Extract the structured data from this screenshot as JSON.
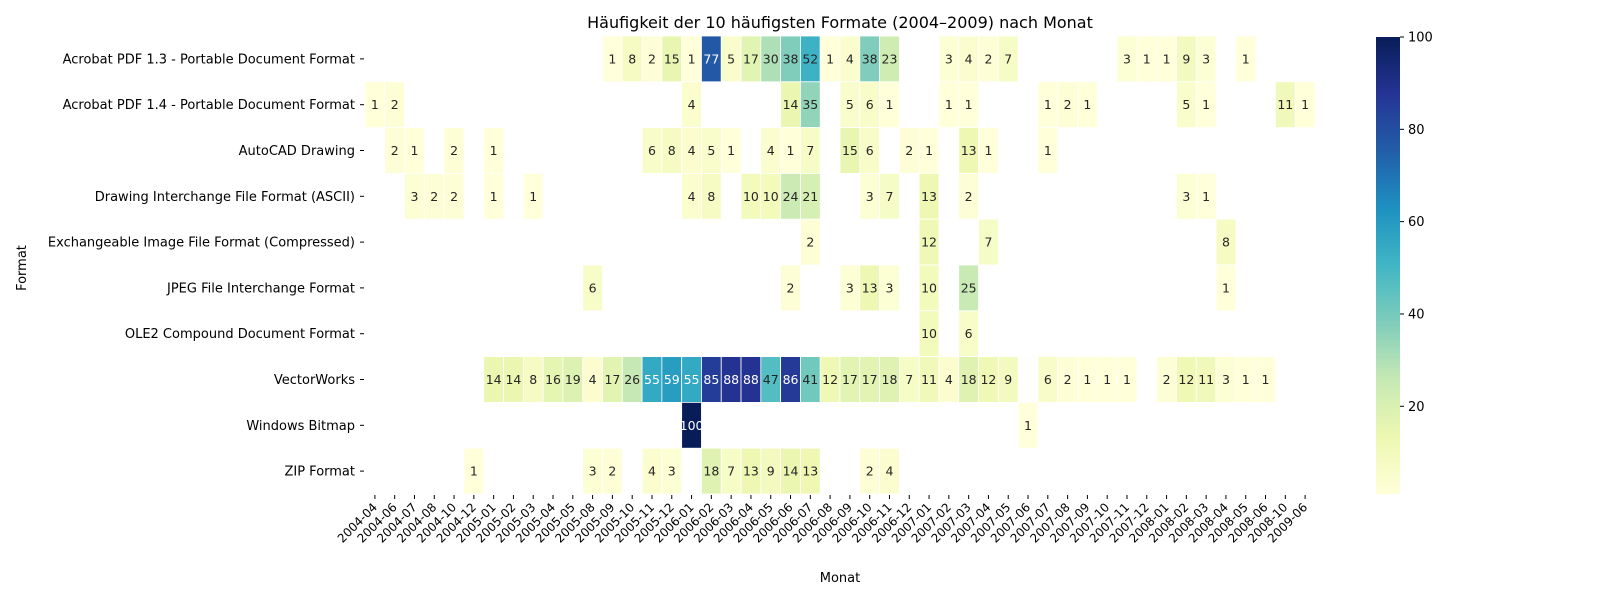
{
  "chart_data": {
    "type": "heatmap",
    "title": "Häufigkeit der 10 häufigsten Formate (2004–2009) nach Monat",
    "xlabel": "Monat",
    "ylabel": "Format",
    "x_categories": [
      "2004-04",
      "2004-06",
      "2004-07",
      "2004-08",
      "2004-10",
      "2004-12",
      "2005-01",
      "2005-02",
      "2005-03",
      "2005-04",
      "2005-05",
      "2005-08",
      "2005-09",
      "2005-10",
      "2005-11",
      "2005-12",
      "2006-01",
      "2006-02",
      "2006-03",
      "2006-04",
      "2006-05",
      "2006-06",
      "2006-07",
      "2006-08",
      "2006-09",
      "2006-10",
      "2006-11",
      "2006-12",
      "2007-01",
      "2007-02",
      "2007-03",
      "2007-04",
      "2007-05",
      "2007-06",
      "2007-07",
      "2007-08",
      "2007-09",
      "2007-10",
      "2007-11",
      "2007-12",
      "2008-01",
      "2008-02",
      "2008-03",
      "2008-04",
      "2008-05",
      "2008-06",
      "2008-10",
      "2009-06"
    ],
    "y_categories": [
      "Acrobat PDF 1.3 - Portable Document Format",
      "Acrobat PDF 1.4 - Portable Document Format",
      "AutoCAD Drawing",
      "Drawing Interchange File Format (ASCII)",
      "Exchangeable Image File Format (Compressed)",
      "JPEG File Interchange Format",
      "OLE2 Compound Document Format",
      "VectorWorks",
      "Windows Bitmap",
      "ZIP Format"
    ],
    "values": [
      [
        null,
        null,
        null,
        null,
        null,
        null,
        null,
        null,
        null,
        null,
        null,
        null,
        1,
        8,
        2,
        15,
        1,
        77,
        5,
        17,
        30,
        38,
        52,
        1,
        4,
        38,
        23,
        null,
        null,
        3,
        4,
        2,
        7,
        null,
        null,
        null,
        null,
        null,
        3,
        1,
        1,
        9,
        3,
        null,
        1,
        null,
        null,
        null
      ],
      [
        1,
        2,
        null,
        null,
        null,
        null,
        null,
        null,
        null,
        null,
        null,
        null,
        null,
        null,
        null,
        null,
        4,
        null,
        null,
        null,
        null,
        14,
        35,
        null,
        5,
        6,
        1,
        null,
        null,
        1,
        1,
        null,
        null,
        null,
        1,
        2,
        1,
        null,
        null,
        null,
        null,
        5,
        1,
        null,
        null,
        null,
        11,
        1
      ],
      [
        null,
        2,
        1,
        null,
        2,
        null,
        1,
        null,
        null,
        null,
        null,
        null,
        null,
        null,
        6,
        8,
        4,
        5,
        1,
        null,
        4,
        1,
        7,
        null,
        15,
        6,
        null,
        2,
        1,
        null,
        13,
        1,
        null,
        null,
        1,
        null,
        null,
        null,
        null,
        null,
        null,
        null,
        null,
        null,
        null,
        null,
        null,
        null
      ],
      [
        null,
        null,
        3,
        2,
        2,
        null,
        1,
        null,
        1,
        null,
        null,
        null,
        null,
        null,
        null,
        null,
        4,
        8,
        null,
        10,
        10,
        24,
        21,
        null,
        null,
        3,
        7,
        null,
        13,
        null,
        2,
        null,
        null,
        null,
        null,
        null,
        null,
        null,
        null,
        null,
        null,
        3,
        1,
        null,
        null,
        null,
        null,
        null
      ],
      [
        null,
        null,
        null,
        null,
        null,
        null,
        null,
        null,
        null,
        null,
        null,
        null,
        null,
        null,
        null,
        null,
        null,
        null,
        null,
        null,
        null,
        null,
        2,
        null,
        null,
        null,
        null,
        null,
        12,
        null,
        null,
        7,
        null,
        null,
        null,
        null,
        null,
        null,
        null,
        null,
        null,
        null,
        null,
        8,
        null,
        null,
        null,
        null
      ],
      [
        null,
        null,
        null,
        null,
        null,
        null,
        null,
        null,
        null,
        null,
        null,
        6,
        null,
        null,
        null,
        null,
        null,
        null,
        null,
        null,
        null,
        2,
        null,
        null,
        3,
        13,
        3,
        null,
        10,
        null,
        25,
        null,
        null,
        null,
        null,
        null,
        null,
        null,
        null,
        null,
        null,
        null,
        null,
        1,
        null,
        null,
        null,
        null
      ],
      [
        null,
        null,
        null,
        null,
        null,
        null,
        null,
        null,
        null,
        null,
        null,
        null,
        null,
        null,
        null,
        null,
        null,
        null,
        null,
        null,
        null,
        null,
        null,
        null,
        null,
        null,
        null,
        null,
        10,
        null,
        6,
        null,
        null,
        null,
        null,
        null,
        null,
        null,
        null,
        null,
        null,
        null,
        null,
        null,
        null,
        null,
        null,
        null
      ],
      [
        null,
        null,
        null,
        null,
        null,
        null,
        14,
        14,
        8,
        16,
        19,
        4,
        17,
        26,
        55,
        59,
        55,
        85,
        88,
        88,
        47,
        86,
        41,
        12,
        17,
        17,
        18,
        7,
        11,
        4,
        18,
        12,
        9,
        null,
        6,
        2,
        1,
        1,
        1,
        null,
        2,
        12,
        11,
        3,
        1,
        1,
        null,
        null
      ],
      [
        null,
        null,
        null,
        null,
        null,
        null,
        null,
        null,
        null,
        null,
        null,
        null,
        null,
        null,
        null,
        null,
        100,
        null,
        null,
        null,
        null,
        null,
        null,
        null,
        null,
        null,
        null,
        null,
        null,
        null,
        null,
        null,
        null,
        1,
        null,
        null,
        null,
        null,
        null,
        null,
        null,
        null,
        null,
        null,
        null,
        null,
        null,
        null
      ],
      [
        null,
        null,
        null,
        null,
        null,
        1,
        null,
        null,
        null,
        null,
        null,
        3,
        2,
        null,
        4,
        3,
        null,
        18,
        7,
        13,
        9,
        14,
        13,
        null,
        null,
        2,
        4,
        null,
        null,
        null,
        null,
        null,
        null,
        null,
        null,
        null,
        null,
        null,
        null,
        null,
        null,
        null,
        null,
        null,
        null,
        null,
        null,
        null
      ]
    ],
    "colormap": "YlGnBu",
    "vmin": 1,
    "vmax": 100,
    "colorbar_ticks": [
      "20",
      "40",
      "60",
      "80",
      "100"
    ],
    "colorbar_tick_values": [
      20,
      40,
      60,
      80,
      100
    ],
    "legend_position": "right"
  }
}
